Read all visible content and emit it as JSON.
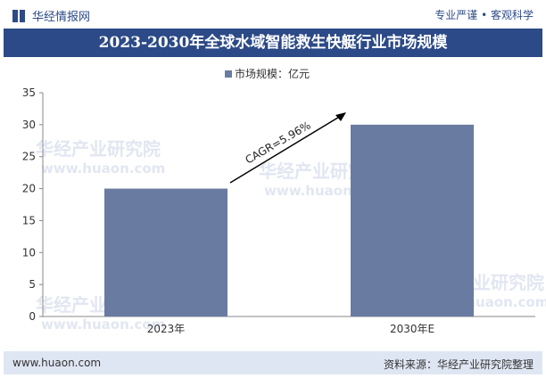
{
  "header": {
    "brand": "华经情报网",
    "tagline": "专业严谨 • 客观科学",
    "title": "2023-2030年全球水域智能救生快艇行业市场规模"
  },
  "watermark": {
    "cn": "华经产业研究院",
    "url": "www.huaon.com"
  },
  "footer": {
    "left": "www.huaon.com",
    "right": "资料来源：华经产业研究院整理"
  },
  "colors": {
    "bar": "#6a7ba2",
    "title_band": "#2c4a87",
    "footer_band": "#dfe6f3",
    "watermark": "#c9d3e6"
  },
  "chart_data": {
    "type": "bar",
    "categories": [
      "2023年",
      "2030年E"
    ],
    "series": [
      {
        "name": "市场规模：亿元",
        "values": [
          20,
          30
        ]
      }
    ],
    "ylim": [
      0,
      35
    ],
    "yticks": [
      0,
      5,
      10,
      15,
      20,
      25,
      30,
      35
    ],
    "legend_position": "top-center",
    "grid": false,
    "annotation": "CAGR=5.96%"
  }
}
